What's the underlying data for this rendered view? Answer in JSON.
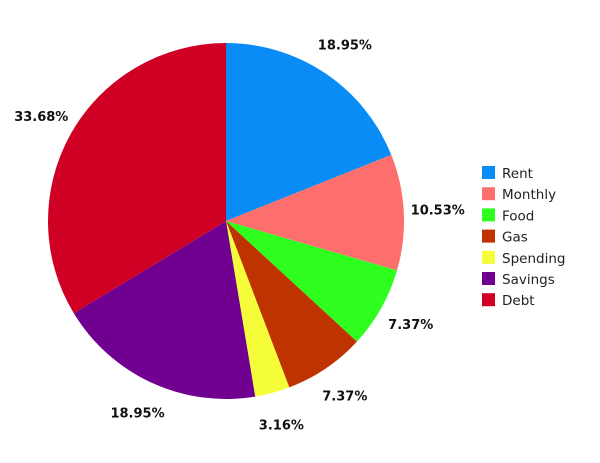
{
  "chart_data": {
    "type": "pie",
    "title": "",
    "legend_position": "right",
    "start_angle_deg": 0,
    "direction": "clockwise",
    "slices": [
      {
        "name": "Rent",
        "value": 18.95,
        "label": "18.95%",
        "color": "#0a8cf7"
      },
      {
        "name": "Monthly",
        "value": 10.53,
        "label": "10.53%",
        "color": "#fc6f6c"
      },
      {
        "name": "Food",
        "value": 7.37,
        "label": "7.37%",
        "color": "#2eff1f"
      },
      {
        "name": "Gas",
        "value": 7.37,
        "label": "7.37%",
        "color": "#bf3300"
      },
      {
        "name": "Spending",
        "value": 3.16,
        "label": "3.16%",
        "color": "#f5fc3a"
      },
      {
        "name": "Savings",
        "value": 18.95,
        "label": "18.95%",
        "color": "#6f0090"
      },
      {
        "name": "Debt",
        "value": 33.68,
        "label": "33.68%",
        "color": "#d00024"
      }
    ]
  }
}
